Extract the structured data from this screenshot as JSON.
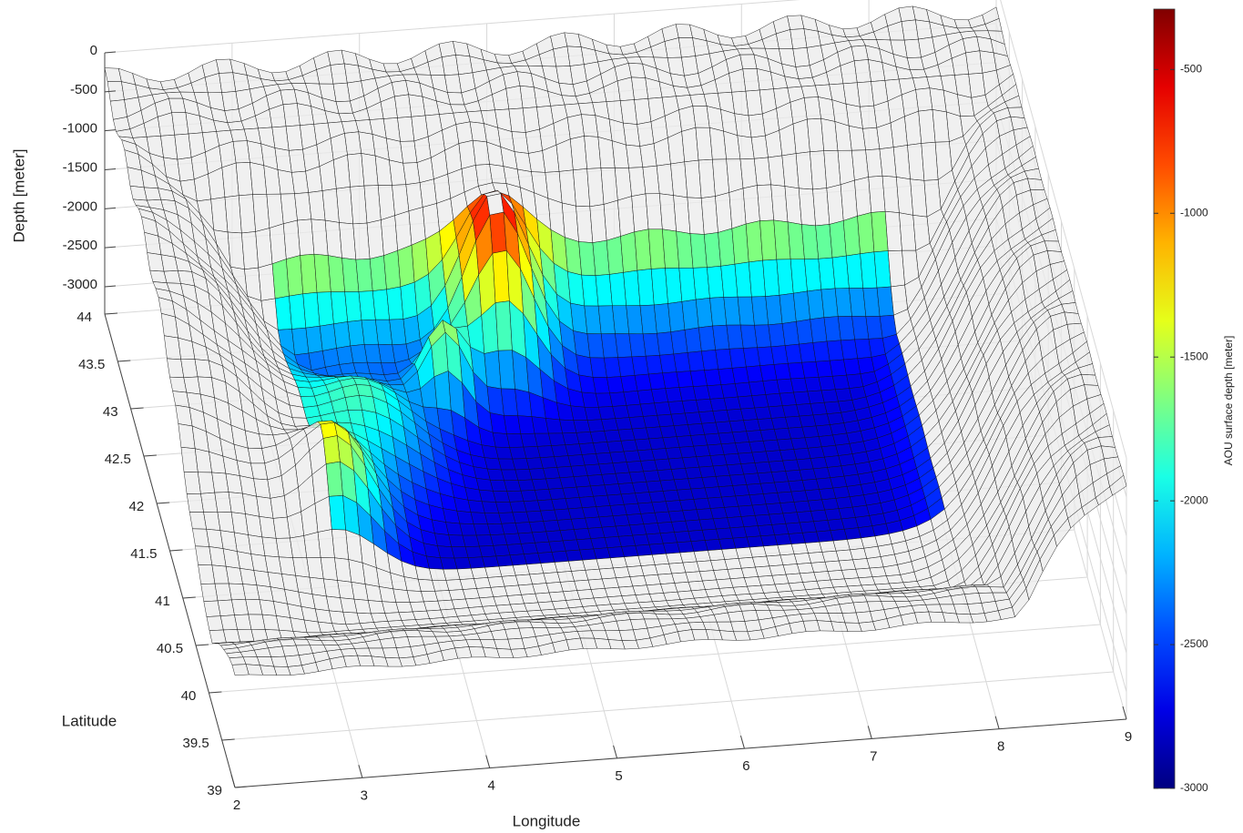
{
  "chart_data": {
    "type": "surface",
    "xlabel": "Longitude",
    "ylabel": "Latitude",
    "zlabel": "Depth [meter]",
    "colorbar_label": "AOU surface depth [meter]",
    "xlim": [
      2,
      9
    ],
    "xticks": [
      2,
      3,
      4,
      5,
      6,
      7,
      8,
      9
    ],
    "ylim": [
      39,
      44
    ],
    "yticks": [
      39,
      39.5,
      40,
      40.5,
      41,
      41.5,
      42,
      42.5,
      43,
      43.5,
      44
    ],
    "zlim": [
      -3350,
      0
    ],
    "zticks": [
      -3000,
      -2500,
      -2000,
      -1500,
      -1000,
      -500,
      0
    ],
    "clim": [
      -3000,
      -290
    ],
    "cticks": [
      -3000,
      -2500,
      -2000,
      -1500,
      -1000,
      -500
    ],
    "colormap": "jet",
    "grid": true
  }
}
